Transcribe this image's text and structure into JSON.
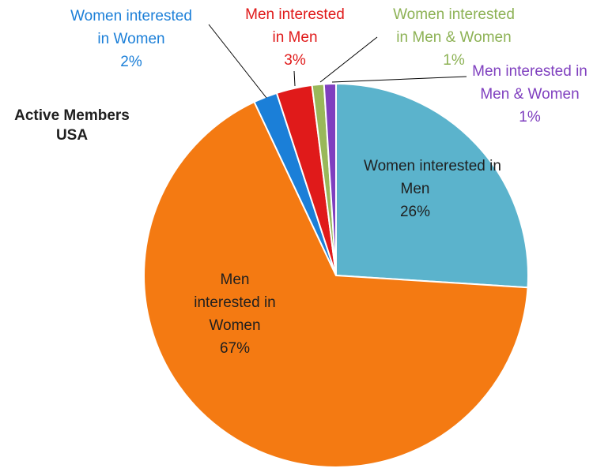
{
  "chart_data": {
    "type": "pie",
    "title": [
      "Active Members",
      "USA"
    ],
    "slices": [
      {
        "label": [
          "Women interested in",
          "Men"
        ],
        "value": 26,
        "value_label": "26%",
        "color": "#5bb3cc",
        "label_color": "#1f1f1f",
        "label_position": "inside"
      },
      {
        "label": [
          "Men",
          "interested in",
          "Women"
        ],
        "value": 67,
        "value_label": "67%",
        "color": "#f47a12",
        "label_color": "#1f1f1f",
        "label_position": "inside"
      },
      {
        "label": [
          "Women interested",
          "in Women"
        ],
        "value": 2,
        "value_label": "2%",
        "color": "#1b7fd8",
        "label_color": "#1b7fd8",
        "label_position": "outside"
      },
      {
        "label": [
          "Men interested",
          "in Men"
        ],
        "value": 3,
        "value_label": "3%",
        "color": "#e01a1a",
        "label_color": "#e01a1a",
        "label_position": "outside"
      },
      {
        "label": [
          "Women interested",
          "in Men & Women"
        ],
        "value": 1,
        "value_label": "1%",
        "color": "#99b85a",
        "label_color": "#8db255",
        "label_position": "outside"
      },
      {
        "label": [
          "Men interested in",
          "Men & Women"
        ],
        "value": 1,
        "value_label": "1%",
        "color": "#7f3fbf",
        "label_color": "#7f3fbf",
        "label_position": "outside"
      }
    ],
    "start_angle_deg": 0,
    "direction": "clockwise",
    "legend": "none"
  }
}
